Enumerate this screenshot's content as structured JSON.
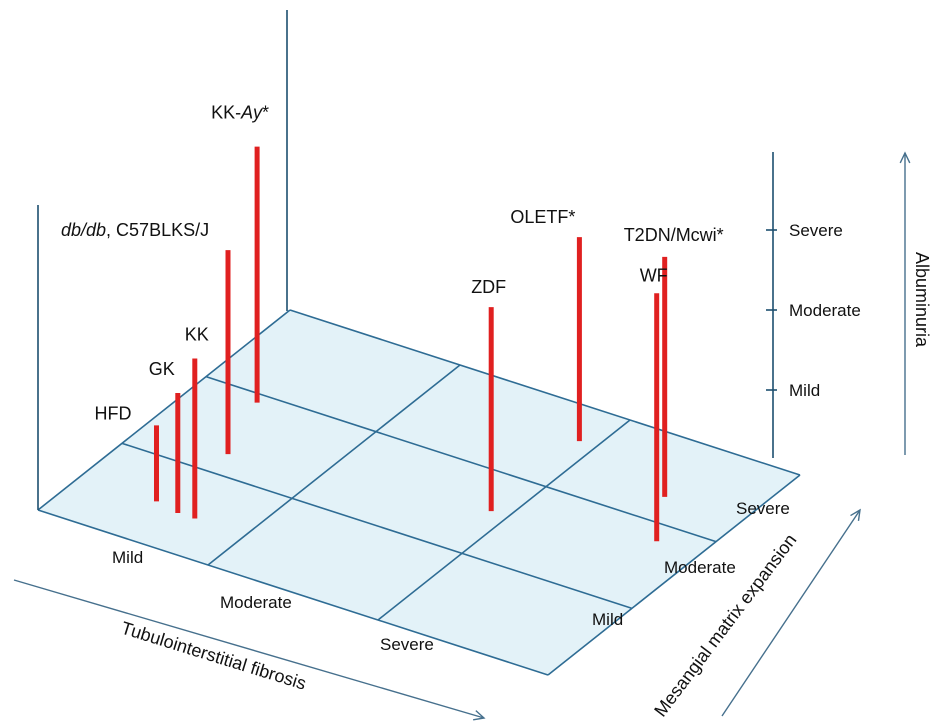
{
  "chart_data": {
    "type": "bar",
    "subtype": "3d-category-bars",
    "x_axis": {
      "label": "Tubulointerstitial fibrosis",
      "categories": [
        "Mild",
        "Moderate",
        "Severe"
      ]
    },
    "z_axis": {
      "label": "Mesangial matrix expansion",
      "categories": [
        "Mild",
        "Moderate",
        "Severe"
      ]
    },
    "y_axis": {
      "label": "Albuminuria",
      "categories": [
        "Mild",
        "Moderate",
        "Severe"
      ]
    },
    "grid": true,
    "colors": {
      "bar": "#e02020",
      "floor": "#e3f2f8",
      "grid": "#2e6c94",
      "axis": "#1d4f70",
      "arrow": "#46708d"
    },
    "models": [
      {
        "name": "HFD",
        "name_italic": "",
        "name_rest": "HFD",
        "tubulointerstitial_fibrosis": 0.45,
        "mesangial_expansion": 0.5,
        "albuminuria": 0.95
      },
      {
        "name": "GK",
        "name_italic": "",
        "name_rest": "GK",
        "tubulointerstitial_fibrosis": 0.6,
        "mesangial_expansion": 0.45,
        "albuminuria": 1.5
      },
      {
        "name": "KK",
        "name_italic": "",
        "name_rest": "KK",
        "tubulointerstitial_fibrosis": 0.7,
        "mesangial_expansion": 0.45,
        "albuminuria": 2.0
      },
      {
        "name": "db/db, C57BLKS/J",
        "name_italic": "db/db",
        "name_rest": ", C57BLKS/J",
        "tubulointerstitial_fibrosis": 0.5,
        "mesangial_expansion": 1.25,
        "albuminuria": 2.55
      },
      {
        "name": "KK-Ay*",
        "name_italic": "Ay*",
        "name_rest": "KK-",
        "italic_last": true,
        "tubulointerstitial_fibrosis": 0.35,
        "mesangial_expansion": 1.9,
        "albuminuria": 3.2
      },
      {
        "name": "ZDF",
        "name_italic": "",
        "name_rest": "ZDF",
        "tubulointerstitial_fibrosis": 1.9,
        "mesangial_expansion": 1.55,
        "albuminuria": 2.55
      },
      {
        "name": "OLETF*",
        "name_italic": "",
        "name_rest": "OLETF*",
        "tubulointerstitial_fibrosis": 1.9,
        "mesangial_expansion": 2.6,
        "albuminuria": 2.55
      },
      {
        "name": "WF",
        "name_italic": "",
        "name_rest": "WF",
        "tubulointerstitial_fibrosis": 2.75,
        "mesangial_expansion": 1.8,
        "albuminuria": 3.1
      },
      {
        "name": "T2DN/Mcwi*",
        "name_italic": "",
        "name_rest": "T2DN/Mcwi*",
        "tubulointerstitial_fibrosis": 2.55,
        "mesangial_expansion": 2.3,
        "albuminuria": 3.0
      }
    ]
  }
}
